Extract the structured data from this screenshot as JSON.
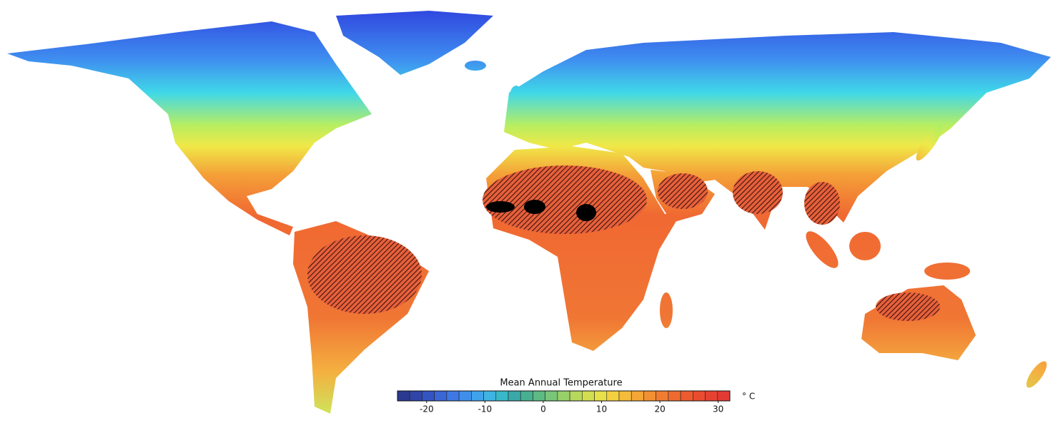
{
  "legend": {
    "title": "Mean Annual Temperature",
    "unit": "° C",
    "range": [
      -25,
      32
    ],
    "ticks": [
      -20,
      -10,
      0,
      10,
      20,
      30
    ],
    "colors": [
      "#2b3a8f",
      "#2f45a8",
      "#3454c2",
      "#3a66d6",
      "#3f78e4",
      "#3f8fea",
      "#40a3ea",
      "#3fb4e2",
      "#38b8c8",
      "#3aa8a8",
      "#48b090",
      "#5cba82",
      "#78c678",
      "#98d06a",
      "#b6d85c",
      "#d2de50",
      "#e8e048",
      "#f2d040",
      "#f4bc3a",
      "#f4a636",
      "#f29034",
      "#f07c32",
      "#ee6a30",
      "#ec5a30",
      "#ea4c30",
      "#e64232",
      "#e23a34"
    ]
  }
}
